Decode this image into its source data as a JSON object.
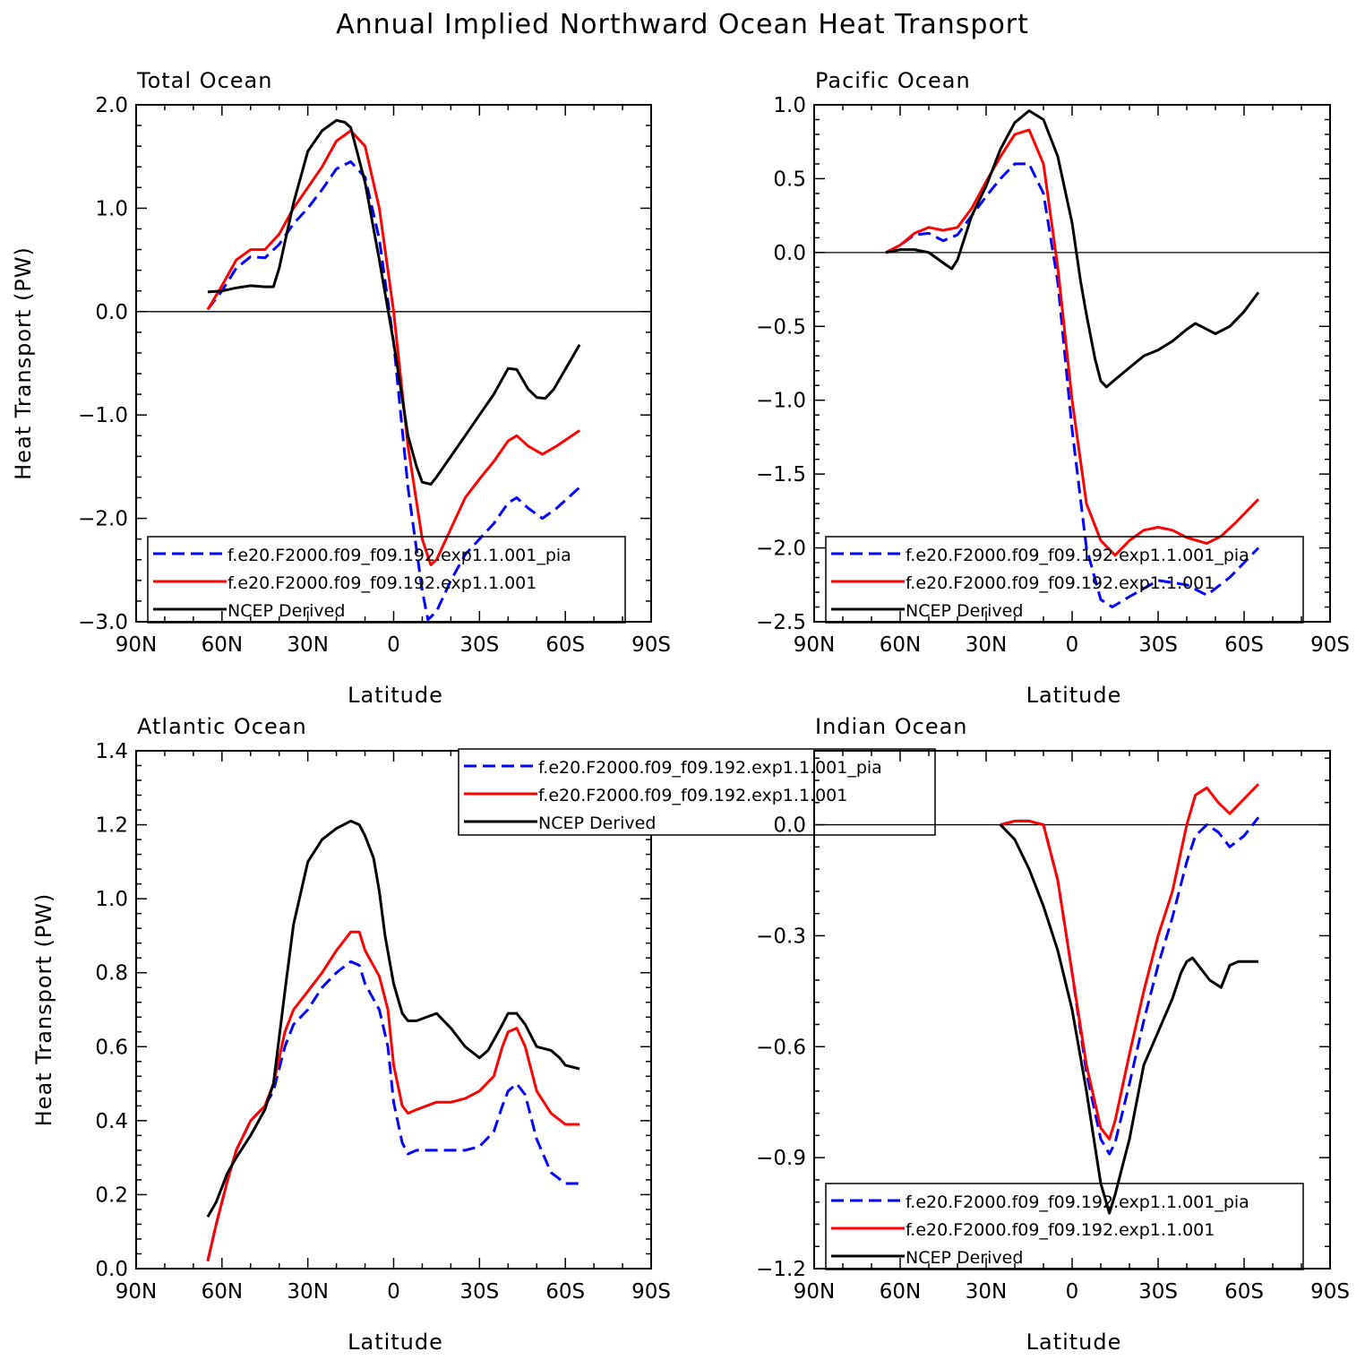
{
  "title": "Annual Implied Northward Ocean Heat Transport",
  "colors": {
    "pia": "#0000ff",
    "exp": "#ff0000",
    "ncep": "#000000"
  },
  "chart_data": [
    {
      "type": "line",
      "title": "Total Ocean",
      "xlabel": "Latitude",
      "ylabel": "Heat Transport (PW)",
      "xlim": [
        90,
        -90
      ],
      "ylim": [
        -3.0,
        2.0
      ],
      "xticks": [
        90,
        60,
        30,
        0,
        -30,
        -60,
        -90
      ],
      "xtick_labels": [
        "90N",
        "60N",
        "30N",
        "0",
        "30S",
        "60S",
        "90S"
      ],
      "yticks": [
        -3.0,
        -2.0,
        -1.0,
        0.0,
        1.0,
        2.0
      ],
      "ytick_labels": [
        "−3.0",
        "−2.0",
        "−1.0",
        "0.0",
        "1.0",
        "2.0"
      ],
      "legend": "bottom-left",
      "series": [
        {
          "name": "f.e20.F2000.f09_f09.192.exp1.1.001_pia",
          "style": "dashed",
          "color": "#0000ff",
          "x": [
            65,
            60,
            55,
            50,
            45,
            40,
            35,
            30,
            25,
            20,
            15,
            10,
            5,
            0,
            -5,
            -10,
            -12,
            -15,
            -20,
            -25,
            -30,
            -35,
            -40,
            -43,
            -47,
            -52,
            -57,
            -65
          ],
          "y": [
            0.02,
            0.2,
            0.42,
            0.53,
            0.52,
            0.65,
            0.85,
            1.0,
            1.18,
            1.38,
            1.45,
            1.3,
            0.7,
            -0.3,
            -1.7,
            -2.7,
            -2.98,
            -2.9,
            -2.6,
            -2.35,
            -2.2,
            -2.05,
            -1.85,
            -1.8,
            -1.9,
            -2.0,
            -1.9,
            -1.7
          ]
        },
        {
          "name": "f.e20.F2000.f09_f09.192.exp1.1.001",
          "style": "solid",
          "color": "#ff0000",
          "x": [
            65,
            60,
            55,
            50,
            45,
            40,
            35,
            30,
            25,
            20,
            15,
            10,
            5,
            0,
            -5,
            -10,
            -13,
            -15,
            -20,
            -25,
            -30,
            -35,
            -40,
            -43,
            -47,
            -52,
            -57,
            -65
          ],
          "y": [
            0.02,
            0.25,
            0.5,
            0.6,
            0.6,
            0.75,
            1.0,
            1.2,
            1.4,
            1.65,
            1.75,
            1.6,
            1.0,
            0.0,
            -1.3,
            -2.2,
            -2.45,
            -2.4,
            -2.1,
            -1.8,
            -1.62,
            -1.45,
            -1.25,
            -1.2,
            -1.3,
            -1.38,
            -1.3,
            -1.15
          ]
        },
        {
          "name": "NCEP Derived",
          "style": "solid",
          "color": "#000000",
          "x": [
            65,
            60,
            55,
            50,
            45,
            42,
            40,
            35,
            30,
            25,
            20,
            17,
            15,
            10,
            5,
            0,
            -5,
            -8,
            -10,
            -13,
            -15,
            -20,
            -25,
            -30,
            -35,
            -40,
            -43,
            -47,
            -50,
            -53,
            -56,
            -65
          ],
          "y": [
            0.19,
            0.2,
            0.23,
            0.25,
            0.24,
            0.24,
            0.42,
            1.05,
            1.55,
            1.75,
            1.85,
            1.83,
            1.78,
            1.25,
            0.5,
            -0.3,
            -1.2,
            -1.5,
            -1.65,
            -1.67,
            -1.6,
            -1.4,
            -1.2,
            -1.0,
            -0.8,
            -0.55,
            -0.56,
            -0.75,
            -0.83,
            -0.84,
            -0.75,
            -0.32
          ]
        }
      ]
    },
    {
      "type": "line",
      "title": "Pacific Ocean",
      "xlabel": "Latitude",
      "ylabel": "",
      "xlim": [
        90,
        -90
      ],
      "ylim": [
        -2.5,
        1.0
      ],
      "xticks": [
        90,
        60,
        30,
        0,
        -30,
        -60,
        -90
      ],
      "xtick_labels": [
        "90N",
        "60N",
        "30N",
        "0",
        "30S",
        "60S",
        "90S"
      ],
      "yticks": [
        -2.5,
        -2.0,
        -1.5,
        -1.0,
        -0.5,
        0.0,
        0.5,
        1.0
      ],
      "ytick_labels": [
        "−2.5",
        "−2.0",
        "−1.5",
        "−1.0",
        "−0.5",
        "0.0",
        "0.5",
        "1.0"
      ],
      "legend": "bottom-left",
      "series": [
        {
          "name": "f.e20.F2000.f09_f09.192.exp1.1.001_pia",
          "style": "dashed",
          "color": "#0000ff",
          "x": [
            65,
            60,
            55,
            50,
            45,
            40,
            35,
            30,
            25,
            20,
            15,
            10,
            5,
            0,
            -5,
            -10,
            -14,
            -20,
            -30,
            -40,
            -47,
            -55,
            -65
          ],
          "y": [
            0.0,
            0.05,
            0.12,
            0.13,
            0.08,
            0.12,
            0.25,
            0.38,
            0.5,
            0.6,
            0.6,
            0.4,
            -0.2,
            -1.2,
            -2.0,
            -2.35,
            -2.4,
            -2.33,
            -2.22,
            -2.25,
            -2.32,
            -2.2,
            -2.0
          ]
        },
        {
          "name": "f.e20.F2000.f09_f09.192.exp1.1.001",
          "style": "solid",
          "color": "#ff0000",
          "x": [
            65,
            60,
            55,
            50,
            45,
            40,
            35,
            30,
            25,
            20,
            15,
            10,
            5,
            0,
            -5,
            -10,
            -15,
            -20,
            -25,
            -30,
            -35,
            -40,
            -47,
            -52,
            -57,
            -65
          ],
          "y": [
            0.0,
            0.05,
            0.13,
            0.17,
            0.15,
            0.17,
            0.3,
            0.48,
            0.65,
            0.8,
            0.83,
            0.6,
            -0.1,
            -1.0,
            -1.7,
            -1.95,
            -2.05,
            -1.95,
            -1.88,
            -1.86,
            -1.88,
            -1.93,
            -1.97,
            -1.92,
            -1.83,
            -1.67
          ]
        },
        {
          "name": "NCEP Derived",
          "style": "solid",
          "color": "#000000",
          "x": [
            65,
            60,
            55,
            50,
            45,
            42,
            40,
            35,
            30,
            25,
            20,
            15,
            10,
            5,
            0,
            -3,
            -5,
            -8,
            -10,
            -12,
            -15,
            -20,
            -25,
            -30,
            -35,
            -40,
            -43,
            -47,
            -50,
            -55,
            -60,
            -65
          ],
          "y": [
            0.0,
            0.02,
            0.02,
            0.0,
            -0.07,
            -0.11,
            -0.05,
            0.25,
            0.45,
            0.7,
            0.88,
            0.96,
            0.9,
            0.65,
            0.2,
            -0.2,
            -0.42,
            -0.72,
            -0.87,
            -0.91,
            -0.86,
            -0.78,
            -0.7,
            -0.66,
            -0.6,
            -0.52,
            -0.48,
            -0.52,
            -0.55,
            -0.5,
            -0.4,
            -0.27
          ]
        }
      ]
    },
    {
      "type": "line",
      "title": "Atlantic Ocean",
      "xlabel": "Latitude",
      "ylabel": "Heat Transport (PW)",
      "xlim": [
        90,
        -90
      ],
      "ylim": [
        0.0,
        1.4
      ],
      "xticks": [
        90,
        60,
        30,
        0,
        -30,
        -60,
        -90
      ],
      "xtick_labels": [
        "90N",
        "60N",
        "30N",
        "0",
        "30S",
        "60S",
        "90S"
      ],
      "yticks": [
        0.0,
        0.2,
        0.4,
        0.6,
        0.8,
        1.0,
        1.2,
        1.4
      ],
      "ytick_labels": [
        "0.0",
        "0.2",
        "0.4",
        "0.6",
        "0.8",
        "1.0",
        "1.2",
        "1.4"
      ],
      "legend": "top-right",
      "series": [
        {
          "name": "f.e20.F2000.f09_f09.192.exp1.1.001_pia",
          "style": "dashed",
          "color": "#0000ff",
          "x": [
            65,
            62,
            58,
            55,
            50,
            45,
            42,
            38,
            35,
            30,
            25,
            20,
            15,
            12,
            10,
            5,
            2,
            0,
            -3,
            -5,
            -8,
            -15,
            -20,
            -25,
            -30,
            -35,
            -38,
            -40,
            -43,
            -46,
            -50,
            -55,
            -60,
            -65
          ],
          "y": [
            0.02,
            0.12,
            0.24,
            0.32,
            0.4,
            0.44,
            0.48,
            0.6,
            0.66,
            0.7,
            0.76,
            0.8,
            0.83,
            0.82,
            0.77,
            0.7,
            0.6,
            0.45,
            0.34,
            0.31,
            0.32,
            0.32,
            0.32,
            0.32,
            0.33,
            0.37,
            0.44,
            0.48,
            0.5,
            0.47,
            0.35,
            0.26,
            0.23,
            0.23
          ]
        },
        {
          "name": "f.e20.F2000.f09_f09.192.exp1.1.001",
          "style": "solid",
          "color": "#ff0000",
          "x": [
            65,
            62,
            58,
            55,
            50,
            45,
            42,
            38,
            35,
            30,
            25,
            20,
            15,
            12,
            10,
            5,
            2,
            0,
            -3,
            -5,
            -8,
            -15,
            -20,
            -25,
            -30,
            -35,
            -38,
            -40,
            -43,
            -46,
            -50,
            -55,
            -60,
            -65
          ],
          "y": [
            0.02,
            0.12,
            0.24,
            0.32,
            0.4,
            0.44,
            0.5,
            0.64,
            0.7,
            0.75,
            0.8,
            0.86,
            0.91,
            0.91,
            0.86,
            0.79,
            0.7,
            0.55,
            0.44,
            0.42,
            0.43,
            0.45,
            0.45,
            0.46,
            0.48,
            0.52,
            0.6,
            0.64,
            0.65,
            0.6,
            0.48,
            0.42,
            0.39,
            0.39
          ]
        },
        {
          "name": "NCEP Derived",
          "style": "solid",
          "color": "#000000",
          "x": [
            65,
            62,
            58,
            55,
            50,
            45,
            42,
            38,
            35,
            30,
            25,
            20,
            15,
            12,
            10,
            7,
            5,
            3,
            0,
            -3,
            -5,
            -8,
            -15,
            -20,
            -25,
            -30,
            -33,
            -38,
            -40,
            -43,
            -46,
            -50,
            -55,
            -58,
            -60,
            -65
          ],
          "y": [
            0.14,
            0.18,
            0.26,
            0.3,
            0.36,
            0.43,
            0.5,
            0.75,
            0.93,
            1.1,
            1.16,
            1.19,
            1.21,
            1.2,
            1.17,
            1.11,
            1.02,
            0.9,
            0.77,
            0.69,
            0.67,
            0.67,
            0.69,
            0.65,
            0.6,
            0.57,
            0.59,
            0.66,
            0.69,
            0.69,
            0.66,
            0.6,
            0.59,
            0.57,
            0.55,
            0.54
          ]
        }
      ]
    },
    {
      "type": "line",
      "title": "Indian Ocean",
      "xlabel": "Latitude",
      "ylabel": "",
      "xlim": [
        90,
        -90
      ],
      "ylim": [
        -1.2,
        0.2
      ],
      "xticks": [
        90,
        60,
        30,
        0,
        -30,
        -60,
        -90
      ],
      "xtick_labels": [
        "90N",
        "60N",
        "30N",
        "0",
        "30S",
        "60S",
        "90S"
      ],
      "yticks": [
        -1.2,
        -0.9,
        -0.6,
        -0.3,
        0.0
      ],
      "ytick_labels": [
        "−1.2",
        "−0.9",
        "−0.6",
        "−0.3",
        "0.0"
      ],
      "legend": "bottom-left",
      "series": [
        {
          "name": "f.e20.F2000.f09_f09.192.exp1.1.001_pia",
          "style": "dashed",
          "color": "#0000ff",
          "x": [
            25,
            20,
            15,
            10,
            5,
            0,
            -5,
            -10,
            -13,
            -15,
            -20,
            -25,
            -30,
            -35,
            -40,
            -43,
            -47,
            -51,
            -55,
            -60,
            -65
          ],
          "y": [
            0.0,
            0.01,
            0.01,
            0.0,
            -0.15,
            -0.4,
            -0.67,
            -0.85,
            -0.89,
            -0.86,
            -0.7,
            -0.53,
            -0.38,
            -0.25,
            -0.1,
            -0.03,
            0.0,
            -0.02,
            -0.06,
            -0.03,
            0.02
          ]
        },
        {
          "name": "f.e20.F2000.f09_f09.192.exp1.1.001",
          "style": "solid",
          "color": "#ff0000",
          "x": [
            25,
            20,
            15,
            10,
            5,
            0,
            -5,
            -10,
            -13,
            -15,
            -20,
            -25,
            -30,
            -35,
            -40,
            -43,
            -47,
            -51,
            -55,
            -60,
            -65
          ],
          "y": [
            0.0,
            0.01,
            0.01,
            0.0,
            -0.15,
            -0.4,
            -0.65,
            -0.82,
            -0.85,
            -0.8,
            -0.62,
            -0.45,
            -0.3,
            -0.18,
            0.0,
            0.08,
            0.1,
            0.06,
            0.03,
            0.07,
            0.11
          ]
        },
        {
          "name": "NCEP Derived",
          "style": "solid",
          "color": "#000000",
          "x": [
            25,
            20,
            15,
            10,
            5,
            0,
            -5,
            -8,
            -10,
            -13,
            -15,
            -20,
            -25,
            -30,
            -35,
            -38,
            -40,
            -42,
            -45,
            -48,
            -52,
            -55,
            -58,
            -60,
            -65
          ],
          "y": [
            0.0,
            -0.04,
            -0.12,
            -0.22,
            -0.34,
            -0.5,
            -0.72,
            -0.87,
            -0.97,
            -1.05,
            -1.0,
            -0.85,
            -0.65,
            -0.56,
            -0.47,
            -0.4,
            -0.37,
            -0.36,
            -0.39,
            -0.42,
            -0.44,
            -0.38,
            -0.37,
            -0.37,
            -0.37
          ]
        }
      ]
    }
  ]
}
